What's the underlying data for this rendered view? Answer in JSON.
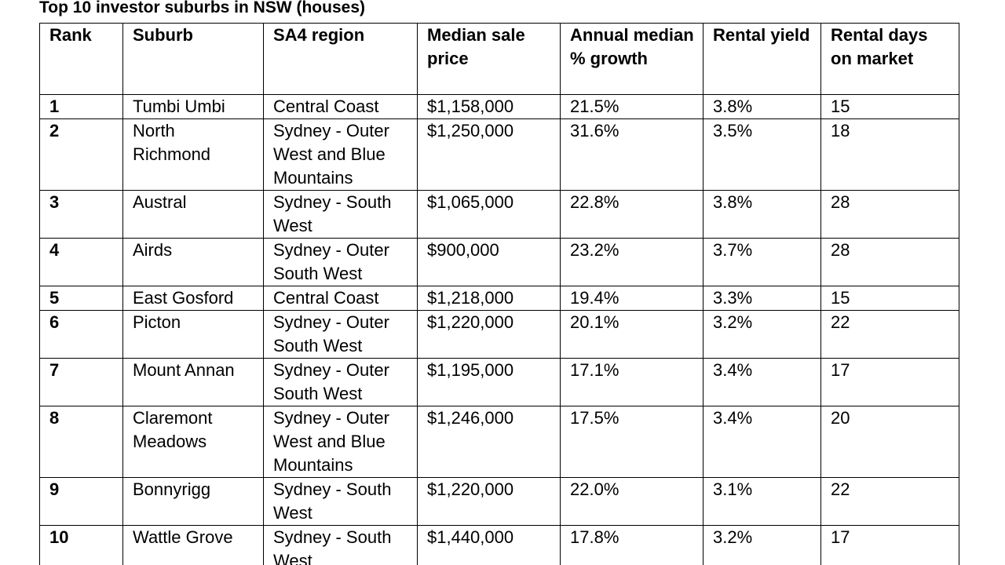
{
  "title": "Top 10 investor suburbs in NSW (houses)",
  "table": {
    "headers": [
      "Rank",
      "Suburb",
      "SA4 region",
      "Median sale price",
      "Annual median % growth",
      "Rental yield",
      "Rental days on market"
    ],
    "rows": [
      [
        "1",
        "Tumbi Umbi",
        "Central Coast",
        "$1,158,000",
        "21.5%",
        "3.8%",
        "15"
      ],
      [
        "2",
        "North Richmond",
        "Sydney - Outer West and Blue Mountains",
        "$1,250,000",
        "31.6%",
        "3.5%",
        "18"
      ],
      [
        "3",
        "Austral",
        "Sydney - South West",
        "$1,065,000",
        "22.8%",
        "3.8%",
        "28"
      ],
      [
        "4",
        "Airds",
        "Sydney - Outer South West",
        "$900,000",
        "23.2%",
        "3.7%",
        "28"
      ],
      [
        "5",
        "East Gosford",
        "Central Coast",
        "$1,218,000",
        "19.4%",
        "3.3%",
        "15"
      ],
      [
        "6",
        "Picton",
        "Sydney - Outer South West",
        "$1,220,000",
        "20.1%",
        "3.2%",
        "22"
      ],
      [
        "7",
        "Mount Annan",
        "Sydney - Outer South West",
        "$1,195,000",
        "17.1%",
        "3.4%",
        "17"
      ],
      [
        "8",
        "Claremont Meadows",
        "Sydney - Outer West and Blue Mountains",
        "$1,246,000",
        "17.5%",
        "3.4%",
        "20"
      ],
      [
        "9",
        "Bonnyrigg",
        "Sydney - South West",
        "$1,220,000",
        "22.0%",
        "3.1%",
        "22"
      ],
      [
        "10",
        "Wattle Grove",
        "Sydney - South West",
        "$1,440,000",
        "17.8%",
        "3.2%",
        "17"
      ]
    ]
  }
}
